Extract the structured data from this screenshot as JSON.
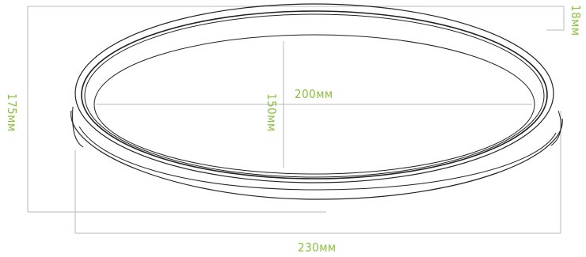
{
  "colors": {
    "outline": "#222222",
    "dimension_line": "#b8b8b8",
    "dimension_text": "#8bbf3f",
    "background": "#ffffff"
  },
  "dimensions": {
    "outer_width": "230мм",
    "inner_width": "200мм",
    "inner_depth": "150мм",
    "outer_depth": "175мм",
    "rim_height": "18мм"
  }
}
